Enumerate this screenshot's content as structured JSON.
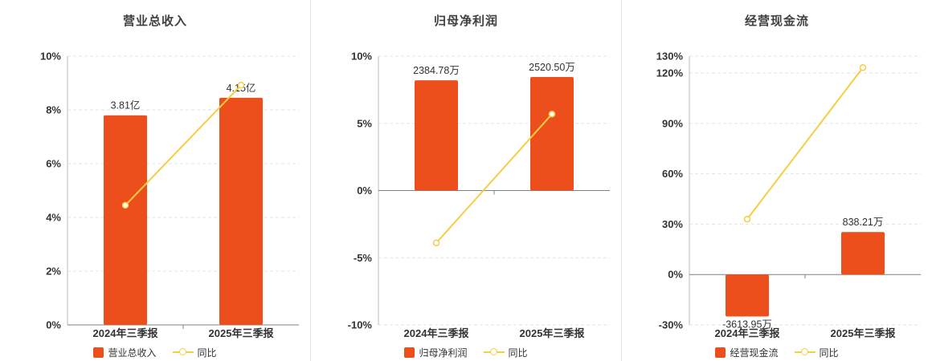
{
  "colors": {
    "bar": "#ec4e1c",
    "line": "#f6cd43",
    "title": "#404040",
    "text": "#333333",
    "grid": "#e3e3e3",
    "axis": "#bbbbbb",
    "zero_line": "#808080"
  },
  "chart_data": [
    {
      "type": "bar+line",
      "title": "营业总收入",
      "categories": [
        "2024年三季报",
        "2025年三季报"
      ],
      "bar_series": {
        "name": "营业总收入",
        "data_labels": [
          "3.81亿",
          "4.15亿"
        ],
        "axis_values_pct": [
          7.8,
          8.45
        ]
      },
      "line_series": {
        "name": "同比",
        "values_pct": [
          4.45,
          8.92
        ]
      },
      "yticks_pct": [
        10,
        8,
        6,
        4,
        2,
        0
      ],
      "ylim_pct": [
        0,
        10
      ],
      "grid": "dashed-horizontal",
      "legend_position": "bottom"
    },
    {
      "type": "bar+line",
      "title": "归母净利润",
      "categories": [
        "2024年三季报",
        "2025年三季报"
      ],
      "bar_series": {
        "name": "归母净利润",
        "data_labels": [
          "2384.78万",
          "2520.50万"
        ],
        "axis_values_pct": [
          8.2,
          8.45
        ]
      },
      "line_series": {
        "name": "同比",
        "values_pct": [
          -3.9,
          5.69
        ]
      },
      "yticks_pct": [
        10,
        5,
        0,
        -5,
        -10
      ],
      "ylim_pct": [
        -10,
        10
      ],
      "grid": "dashed-horizontal",
      "legend_position": "bottom"
    },
    {
      "type": "bar+line",
      "title": "经营现金流",
      "categories": [
        "2024年三季报",
        "2025年三季报"
      ],
      "bar_series": {
        "name": "经营现金流",
        "data_labels": [
          "-3613.95万",
          "838.21万"
        ],
        "axis_values_pct": [
          -25,
          25.3
        ]
      },
      "line_series": {
        "name": "同比",
        "values_pct": [
          33,
          123.2
        ]
      },
      "yticks_pct": [
        130,
        120,
        90,
        60,
        30,
        0,
        -30
      ],
      "ylim_pct": [
        -30,
        130
      ],
      "grid": "dashed-horizontal",
      "legend_position": "bottom"
    }
  ]
}
